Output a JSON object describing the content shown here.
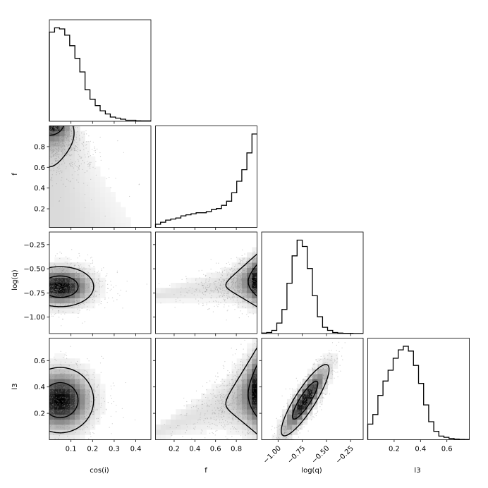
{
  "chart_data": {
    "type": "corner",
    "parameters": [
      {
        "name": "cos(i)",
        "label": "cos(i)",
        "range": [
          0.0,
          0.47
        ],
        "ticks": [
          0.1,
          0.2,
          0.3,
          0.4
        ],
        "tick_labels": [
          "0.1",
          "0.2",
          "0.3",
          "0.4"
        ]
      },
      {
        "name": "f",
        "label": "f",
        "range": [
          0.02,
          1.0
        ],
        "ticks": [
          0.2,
          0.4,
          0.6,
          0.8
        ],
        "tick_labels": [
          "0.2",
          "0.4",
          "0.6",
          "0.8"
        ]
      },
      {
        "name": "log(q)",
        "label": "log(q)",
        "range": [
          -1.17,
          -0.12
        ],
        "ticks": [
          -1.0,
          -0.75,
          -0.5,
          -0.25
        ],
        "tick_labels": [
          "−1.00",
          "−0.75",
          "−0.50",
          "−0.25"
        ]
      },
      {
        "name": "l3",
        "label": "l3",
        "range": [
          0.0,
          0.77
        ],
        "ticks": [
          0.2,
          0.4,
          0.6
        ],
        "tick_labels": [
          "0.2",
          "0.4",
          "0.6"
        ]
      }
    ],
    "marginals": [
      {
        "param": "cos(i)",
        "bin_edges": [
          0.0,
          0.024,
          0.047,
          0.071,
          0.094,
          0.118,
          0.141,
          0.165,
          0.188,
          0.212,
          0.235,
          0.259,
          0.282,
          0.306,
          0.329,
          0.353,
          0.376,
          0.4,
          0.423,
          0.447,
          0.47
        ],
        "counts": [
          0.85,
          0.89,
          0.88,
          0.82,
          0.72,
          0.6,
          0.47,
          0.3,
          0.21,
          0.15,
          0.1,
          0.07,
          0.04,
          0.03,
          0.02,
          0.01,
          0.01,
          0.005,
          0.004,
          0.004
        ]
      },
      {
        "param": "f",
        "bin_edges": [
          0.02,
          0.069,
          0.118,
          0.167,
          0.216,
          0.265,
          0.314,
          0.363,
          0.412,
          0.461,
          0.51,
          0.559,
          0.608,
          0.657,
          0.706,
          0.755,
          0.804,
          0.853,
          0.902,
          0.951,
          1.0
        ],
        "counts": [
          0.03,
          0.05,
          0.07,
          0.08,
          0.09,
          0.11,
          0.12,
          0.13,
          0.14,
          0.14,
          0.15,
          0.17,
          0.18,
          0.21,
          0.25,
          0.33,
          0.44,
          0.55,
          0.71,
          0.89
        ]
      },
      {
        "param": "log(q)",
        "bin_edges": [
          -1.17,
          -1.118,
          -1.065,
          -1.013,
          -0.96,
          -0.908,
          -0.855,
          -0.803,
          -0.75,
          -0.698,
          -0.645,
          -0.593,
          -0.54,
          -0.488,
          -0.435,
          -0.383,
          -0.33,
          -0.278,
          -0.225,
          -0.173,
          -0.12
        ],
        "counts": [
          0.005,
          0.01,
          0.03,
          0.1,
          0.23,
          0.48,
          0.74,
          0.89,
          0.83,
          0.62,
          0.36,
          0.16,
          0.06,
          0.03,
          0.01,
          0.005,
          0.003,
          0.002,
          0.001,
          0.001
        ]
      },
      {
        "param": "l3",
        "bin_edges": [
          0.0,
          0.0385,
          0.077,
          0.1155,
          0.154,
          0.1925,
          0.231,
          0.2695,
          0.308,
          0.3465,
          0.385,
          0.4235,
          0.462,
          0.5005,
          0.539,
          0.5775,
          0.616,
          0.6545,
          0.693,
          0.7315,
          0.77
        ],
        "counts": [
          0.13,
          0.21,
          0.37,
          0.49,
          0.58,
          0.68,
          0.75,
          0.78,
          0.74,
          0.62,
          0.47,
          0.29,
          0.15,
          0.07,
          0.03,
          0.02,
          0.01,
          0.005,
          0.002,
          0.001
        ]
      }
    ],
    "joint_peaks": [
      {
        "x": "cos(i)",
        "y": "f",
        "peak": [
          0.09,
          0.96
        ]
      },
      {
        "x": "cos(i)",
        "y": "log(q)",
        "peak": [
          0.07,
          -0.68
        ]
      },
      {
        "x": "f",
        "y": "log(q)",
        "peak": [
          0.95,
          -0.63
        ]
      },
      {
        "x": "cos(i)",
        "y": "l3",
        "peak": [
          0.09,
          0.3
        ]
      },
      {
        "x": "f",
        "y": "l3",
        "peak": [
          0.95,
          0.38
        ]
      },
      {
        "x": "log(q)",
        "y": "l3",
        "peak": [
          -0.72,
          0.3
        ]
      }
    ],
    "grid": false,
    "legend": "none"
  }
}
